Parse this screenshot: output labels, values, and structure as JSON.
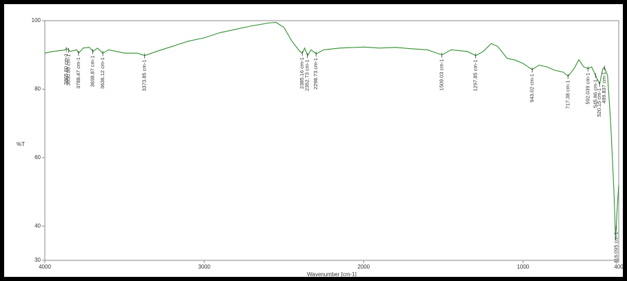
{
  "chart_data": {
    "type": "line",
    "y_label": "%T",
    "x_label": "Wavenumber [cm-1]",
    "xlim": [
      4000,
      400
    ],
    "ylim": [
      30,
      100
    ],
    "xticks": [
      4000,
      3000,
      2000,
      1000,
      400
    ],
    "yticks": [
      30,
      40,
      60,
      80,
      100
    ],
    "x": [
      4000,
      3950,
      3880,
      3860,
      3840,
      3800,
      3788,
      3760,
      3720,
      3698,
      3670,
      3636,
      3600,
      3550,
      3500,
      3420,
      3373,
      3300,
      3200,
      3100,
      3000,
      2900,
      2800,
      2700,
      2600,
      2550,
      2500,
      2450,
      2400,
      2385,
      2370,
      2352,
      2330,
      2298,
      2250,
      2150,
      2000,
      1900,
      1800,
      1700,
      1600,
      1509,
      1450,
      1350,
      1297,
      1250,
      1200,
      1160,
      1100,
      1050,
      1000,
      943,
      900,
      850,
      800,
      750,
      717,
      680,
      650,
      620,
      592,
      570,
      545,
      520,
      500,
      489,
      470,
      450,
      430,
      420,
      410,
      400
    ],
    "series": [
      {
        "name": "%T",
        "color": "#2f8f2f",
        "values": [
          90.5,
          91,
          91.4,
          91.8,
          91,
          91.5,
          90.5,
          92,
          92.2,
          91,
          92,
          90.5,
          91.5,
          91,
          90.5,
          90.5,
          89.8,
          91,
          92.5,
          94,
          95,
          96.5,
          97.5,
          98.5,
          99.3,
          99.5,
          98,
          94,
          91,
          90.5,
          92,
          89.8,
          91.5,
          90.3,
          91.5,
          92,
          92.3,
          92,
          92.2,
          91.8,
          91.5,
          90,
          91.5,
          91,
          89.8,
          91,
          93.3,
          92.5,
          89,
          88.5,
          87.5,
          85.7,
          87,
          86.5,
          85.5,
          85,
          83.8,
          86,
          88.6,
          86.5,
          86,
          86.5,
          84,
          81.5,
          86,
          86.3,
          84,
          70,
          50,
          36,
          45,
          52
        ]
      }
    ],
    "peaks": [
      {
        "x": 3865.6,
        "label": "3865.60 cm-1"
      },
      {
        "x": 3850.88,
        "label": "3850.88 cm-1"
      },
      {
        "x": 3788.47,
        "label": "3788.47 cm-1"
      },
      {
        "x": 3698.87,
        "label": "3698.87 cm-1"
      },
      {
        "x": 3636.12,
        "label": "3636.12 cm-1"
      },
      {
        "x": 3373.85,
        "label": "3373.85 cm-1"
      },
      {
        "x": 2385.16,
        "label": "2385.16 cm-1"
      },
      {
        "x": 2352.73,
        "label": "2352.73 cm-1"
      },
      {
        "x": 2298.73,
        "label": "2298.73 cm-1"
      },
      {
        "x": 1509.03,
        "label": "1509.03 cm-1"
      },
      {
        "x": 1297.85,
        "label": "1297.85 cm-1"
      },
      {
        "x": 943.02,
        "label": "943.02 cm-1"
      },
      {
        "x": 717.38,
        "label": "717.38 cm-1"
      },
      {
        "x": 592.039,
        "label": "592.039 cm-1"
      },
      {
        "x": 545.86,
        "label": "545.86 cm-1"
      },
      {
        "x": 520.15,
        "label": "520.15 cm-1"
      },
      {
        "x": 489.837,
        "label": "489.837 cm-1"
      },
      {
        "x": 416.095,
        "label": "416.095 cm-1"
      }
    ]
  }
}
